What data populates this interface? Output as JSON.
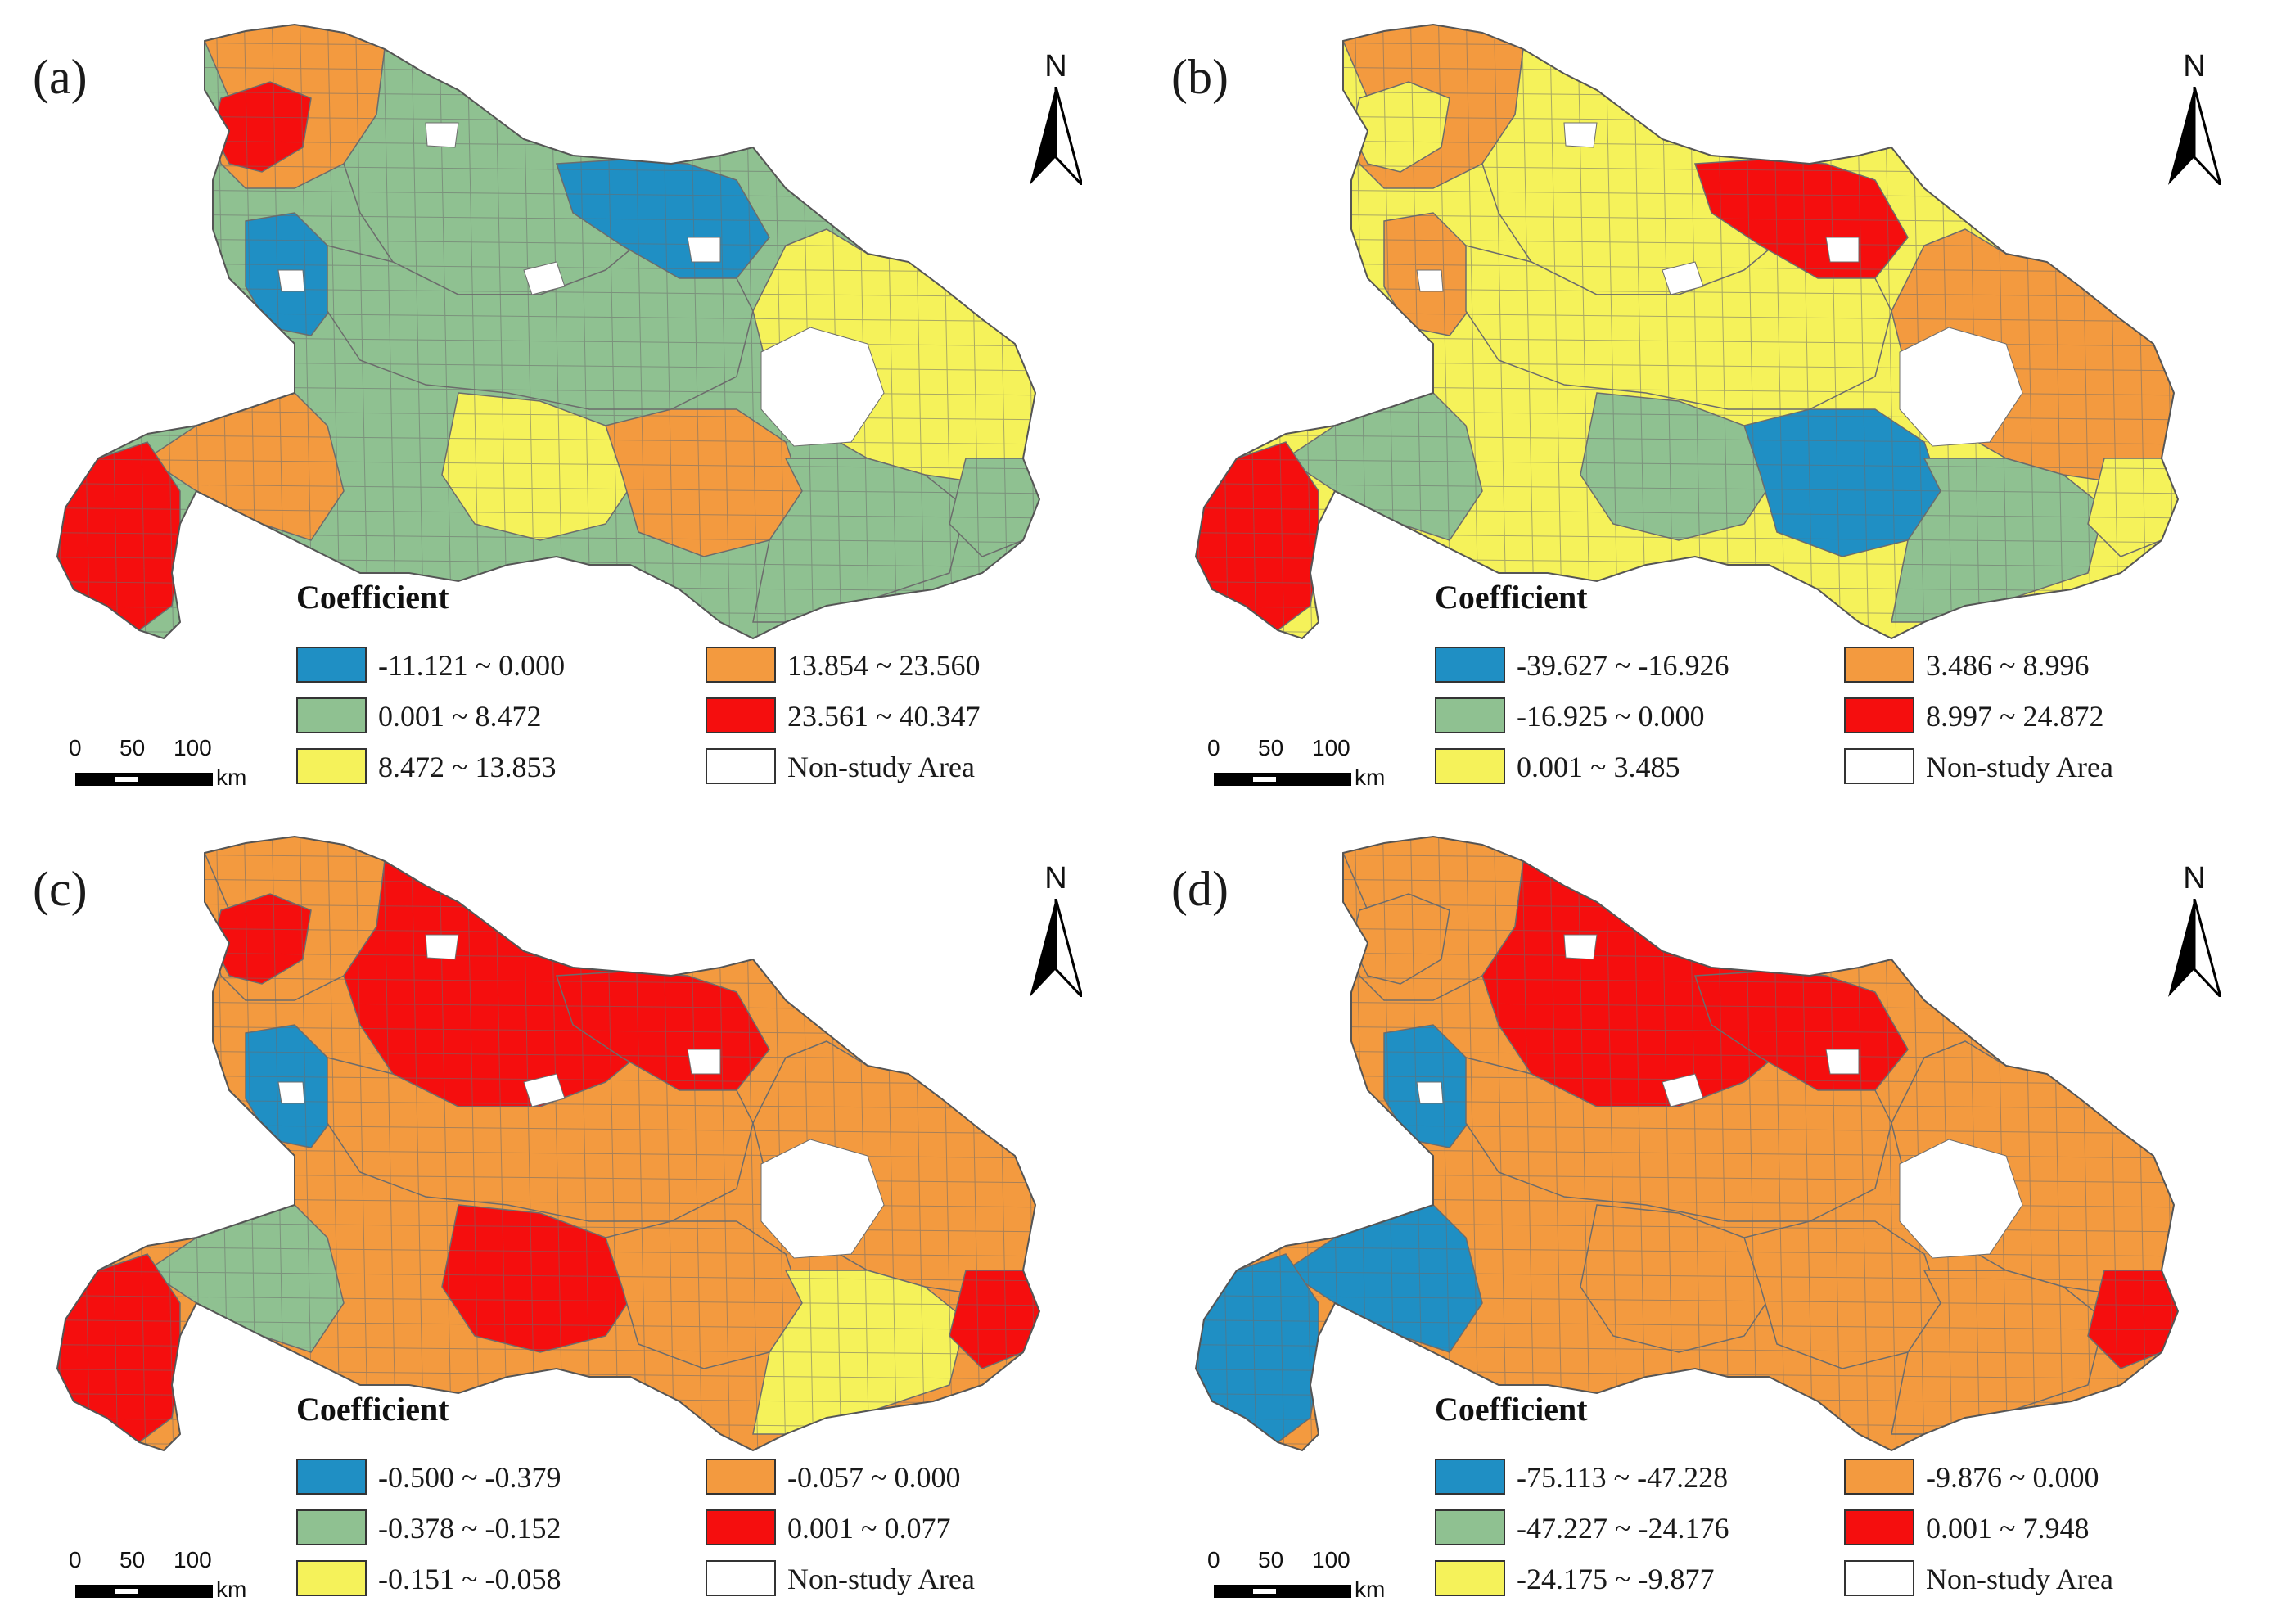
{
  "colors": {
    "blue": "#1f8fc4",
    "green": "#8fc191",
    "yellow": "#f5f25a",
    "orange": "#f39a3f",
    "red": "#f50e0e",
    "white": "#ffffff",
    "border": "#6c6c6c"
  },
  "scale": {
    "ticks": [
      "0",
      "50",
      "100"
    ],
    "unit": "km"
  },
  "north_label": "N",
  "legend_title": "Coefficient",
  "non_study_label": "Non-study Area",
  "panels": [
    {
      "label": "(a)",
      "classes": [
        {
          "range": "-11.121 ~ 0.000",
          "color": "#1f8fc4"
        },
        {
          "range": "0.001 ~ 8.472",
          "color": "#8fc191"
        },
        {
          "range": "8.472 ~ 13.853",
          "color": "#f5f25a"
        },
        {
          "range": "13.854 ~ 23.560",
          "color": "#f39a3f"
        },
        {
          "range": "23.561 ~ 40.347",
          "color": "#f50e0e"
        }
      ],
      "regions": {
        "northwest": "#f39a3f",
        "northwest_tip": "#f50e0e",
        "north_central": "#8fc191",
        "north_east_patch": "#1f8fc4",
        "west_patch": "#1f8fc4",
        "central": "#8fc191",
        "central_south": "#f5f25a",
        "south_central": "#f39a3f",
        "east": "#f5f25a",
        "east_edge": "#8fc191",
        "southwest": "#f39a3f",
        "southwest_tip": "#f50e0e",
        "southeast": "#8fc191"
      }
    },
    {
      "label": "(b)",
      "classes": [
        {
          "range": "-39.627 ~ -16.926",
          "color": "#1f8fc4"
        },
        {
          "range": "-16.925 ~ 0.000",
          "color": "#8fc191"
        },
        {
          "range": "0.001 ~ 3.485",
          "color": "#f5f25a"
        },
        {
          "range": "3.486 ~ 8.996",
          "color": "#f39a3f"
        },
        {
          "range": "8.997 ~ 24.872",
          "color": "#f50e0e"
        }
      ],
      "regions": {
        "northwest": "#f39a3f",
        "northwest_tip": "#f5f25a",
        "north_central": "#f5f25a",
        "north_east_patch": "#f50e0e",
        "west_patch": "#f39a3f",
        "central": "#f5f25a",
        "central_south": "#8fc191",
        "south_central": "#1f8fc4",
        "east": "#f39a3f",
        "east_edge": "#f5f25a",
        "southwest": "#8fc191",
        "southwest_tip": "#f50e0e",
        "southeast": "#8fc191"
      }
    },
    {
      "label": "(c)",
      "classes": [
        {
          "range": "-0.500 ~ -0.379",
          "color": "#1f8fc4"
        },
        {
          "range": "-0.378 ~ -0.152",
          "color": "#8fc191"
        },
        {
          "range": "-0.151 ~ -0.058",
          "color": "#f5f25a"
        },
        {
          "range": "-0.057 ~ 0.000",
          "color": "#f39a3f"
        },
        {
          "range": "0.001 ~ 0.077",
          "color": "#f50e0e"
        }
      ],
      "regions": {
        "northwest": "#f39a3f",
        "northwest_tip": "#f50e0e",
        "north_central": "#f50e0e",
        "north_east_patch": "#f50e0e",
        "west_patch": "#1f8fc4",
        "central": "#f39a3f",
        "central_south": "#f50e0e",
        "south_central": "#f39a3f",
        "east": "#f39a3f",
        "east_edge": "#f50e0e",
        "southwest": "#8fc191",
        "southwest_tip": "#f50e0e",
        "southeast": "#f5f25a"
      }
    },
    {
      "label": "(d)",
      "classes": [
        {
          "range": "-75.113 ~ -47.228",
          "color": "#1f8fc4"
        },
        {
          "range": "-47.227 ~ -24.176",
          "color": "#8fc191"
        },
        {
          "range": "-24.175 ~ -9.877",
          "color": "#f5f25a"
        },
        {
          "range": "-9.876 ~ 0.000",
          "color": "#f39a3f"
        },
        {
          "range": "0.001 ~ 7.948",
          "color": "#f50e0e"
        }
      ],
      "regions": {
        "northwest": "#f39a3f",
        "northwest_tip": "#f39a3f",
        "north_central": "#f50e0e",
        "north_east_patch": "#f50e0e",
        "west_patch": "#1f8fc4",
        "central": "#f39a3f",
        "central_south": "#f39a3f",
        "south_central": "#f39a3f",
        "east": "#f39a3f",
        "east_edge": "#f50e0e",
        "southwest": "#1f8fc4",
        "southwest_tip": "#1f8fc4",
        "southeast": "#f39a3f"
      }
    }
  ]
}
